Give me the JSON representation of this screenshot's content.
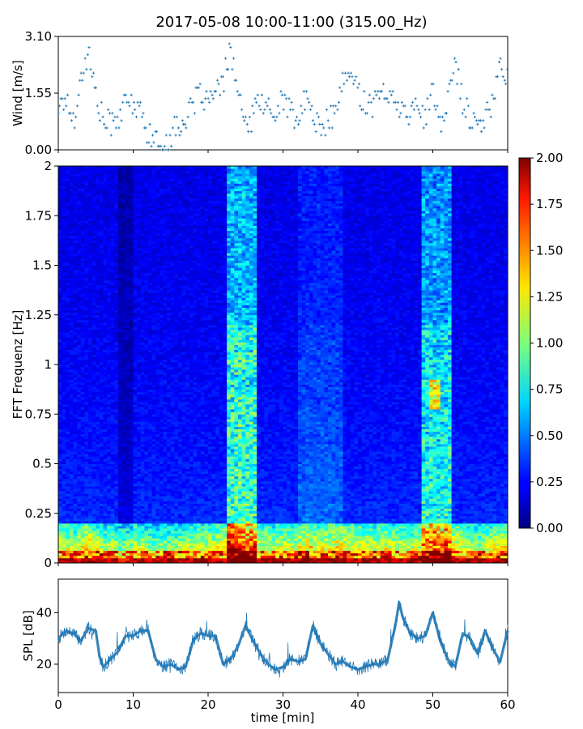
{
  "figure": {
    "title": "2017-05-08 10:00-11:00 (315.00_Hz)"
  },
  "chart_data": [
    {
      "type": "scatter",
      "panel": "wind",
      "ylabel": "Wind [m/s]",
      "xlim": [
        0,
        60
      ],
      "ylim": [
        0.0,
        3.1
      ],
      "yticks": [
        "0.00",
        "1.55",
        "3.10"
      ],
      "marker": "+",
      "color": "#1f77b4",
      "x_minutes": [
        0,
        1,
        2,
        3,
        4,
        5,
        6,
        7,
        8,
        9,
        10,
        11,
        12,
        13,
        14,
        15,
        16,
        17,
        18,
        19,
        20,
        21,
        22,
        23,
        24,
        25,
        26,
        27,
        28,
        29,
        30,
        31,
        32,
        33,
        34,
        35,
        36,
        37,
        38,
        39,
        40,
        41,
        42,
        43,
        44,
        45,
        46,
        47,
        48,
        49,
        50,
        51,
        52,
        53,
        54,
        55,
        56,
        57,
        58,
        59,
        60
      ],
      "y_values": [
        1.2,
        1.4,
        0.8,
        1.9,
        2.7,
        1.5,
        0.8,
        0.7,
        0.9,
        1.2,
        1.3,
        1.0,
        0.5,
        0.2,
        0.1,
        0.4,
        0.7,
        0.8,
        1.2,
        1.6,
        1.3,
        1.5,
        1.8,
        2.8,
        1.5,
        0.6,
        0.9,
        1.4,
        1.1,
        0.9,
        1.5,
        1.0,
        0.8,
        1.4,
        1.0,
        0.5,
        0.8,
        1.0,
        1.8,
        2.1,
        1.6,
        1.3,
        1.2,
        1.5,
        1.7,
        1.1,
        1.4,
        0.9,
        1.3,
        0.8,
        1.6,
        0.5,
        1.5,
        2.4,
        1.3,
        0.9,
        0.6,
        0.8,
        1.4,
        2.3,
        2.0
      ]
    },
    {
      "type": "heatmap",
      "panel": "fft",
      "ylabel": "FFT Frequenz [Hz]",
      "xlim": [
        0,
        60
      ],
      "ylim": [
        0,
        2
      ],
      "yticks": [
        "0",
        "0.25",
        "0.5",
        "0.75",
        "1",
        "1.25",
        "1.5",
        "1.75",
        "2"
      ],
      "colormap": "jet",
      "colorbar": {
        "range": [
          0.0,
          2.0
        ],
        "ticks": [
          "0.00",
          "0.25",
          "0.50",
          "0.75",
          "1.00",
          "1.25",
          "1.50",
          "1.75",
          "2.00"
        ]
      }
    },
    {
      "type": "line",
      "panel": "spl",
      "ylabel": "SPL [dB]",
      "xlabel": "time [min]",
      "xlim": [
        0,
        60
      ],
      "ylim": [
        9,
        53
      ],
      "yticks": [
        "20",
        "40"
      ],
      "xticks": [
        "0",
        "10",
        "20",
        "30",
        "40",
        "50",
        "60"
      ],
      "color": "#1f77b4",
      "x_minutes": [
        0,
        1,
        2,
        3,
        4,
        5,
        5.5,
        6,
        7,
        8,
        9,
        10,
        11,
        12,
        13,
        14,
        15,
        16,
        17,
        18,
        19,
        20,
        21,
        22,
        23,
        24,
        25,
        26,
        27,
        28,
        29,
        30,
        31,
        32,
        33,
        34,
        35,
        36,
        37,
        38,
        39,
        40,
        41,
        42,
        43,
        44,
        45,
        45.5,
        46,
        47,
        48,
        49,
        50,
        51,
        52,
        53,
        54,
        55,
        56,
        57,
        58,
        59,
        60
      ],
      "y_values": [
        30,
        33,
        32,
        29,
        34,
        33,
        23,
        19,
        22,
        25,
        31,
        31,
        33,
        33,
        22,
        19,
        20,
        18,
        19,
        29,
        32,
        31,
        31,
        20,
        22,
        27,
        35,
        29,
        24,
        20,
        18,
        19,
        22,
        21,
        22,
        35,
        28,
        24,
        20,
        21,
        19,
        18,
        19,
        20,
        20,
        22,
        35,
        44,
        38,
        32,
        30,
        31,
        40,
        29,
        22,
        19,
        32,
        30,
        24,
        33,
        26,
        21,
        33
      ]
    }
  ]
}
